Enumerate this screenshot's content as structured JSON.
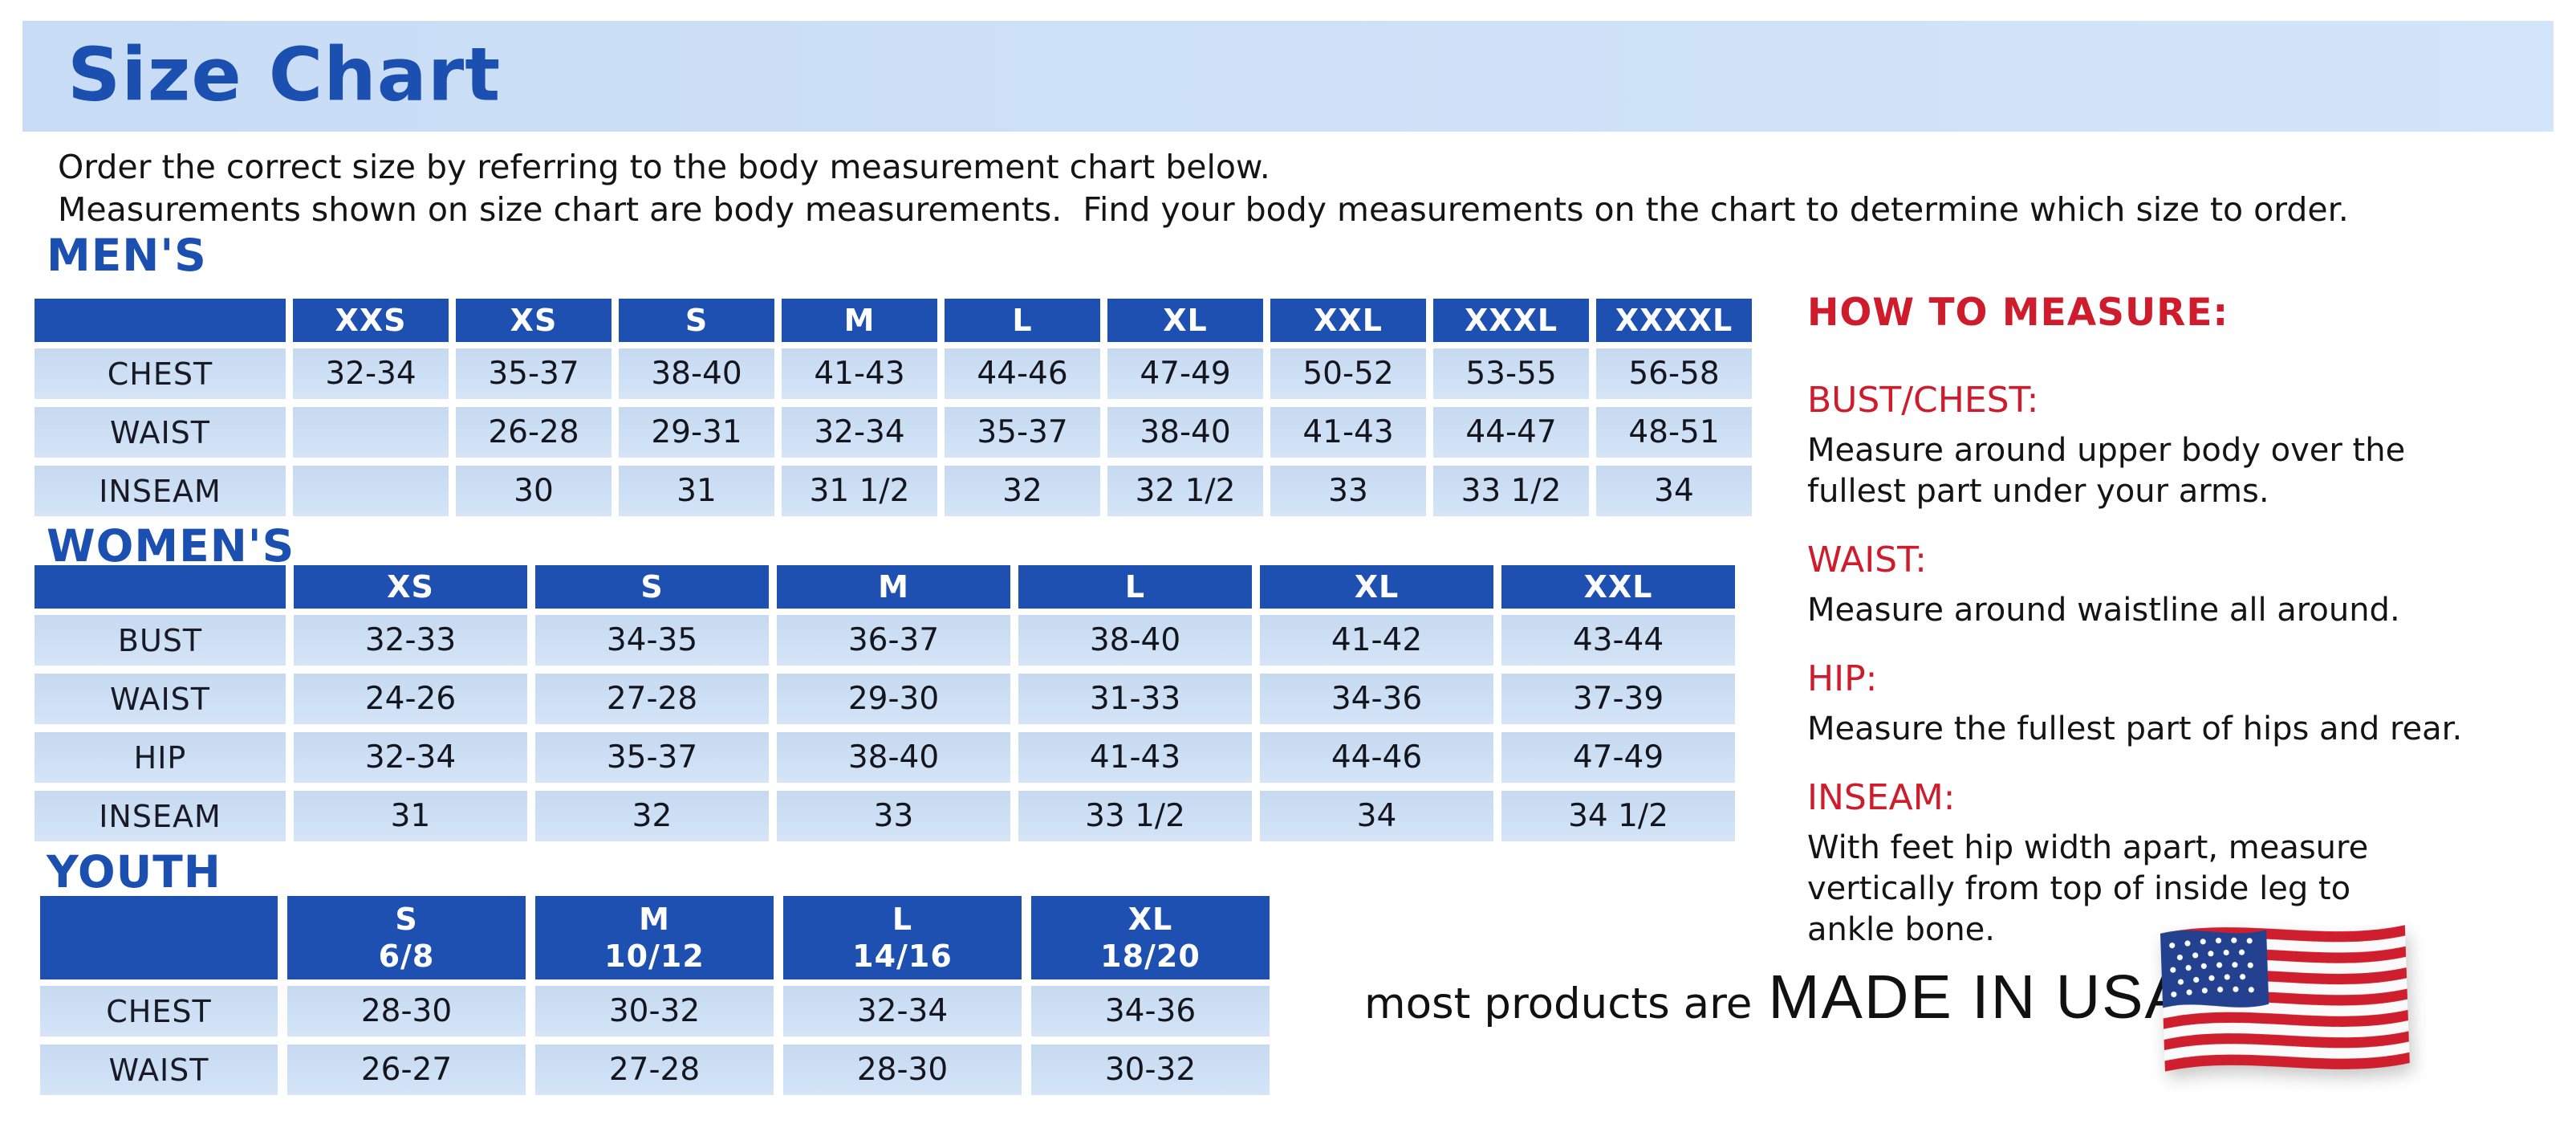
{
  "banner": {
    "title": "Size Chart"
  },
  "intro": {
    "line1": "Order the correct size by referring to the body measurement chart below.",
    "line2": "Measurements shown on size chart are body measurements.  Find your body measurements on the chart to determine which size to order."
  },
  "tables": {
    "mens": {
      "heading": "MEN'S",
      "columns": [
        "XXS",
        "XS",
        "S",
        "M",
        "L",
        "XL",
        "XXL",
        "XXXL",
        "XXXXL"
      ],
      "rows": [
        {
          "label": "CHEST",
          "cells": [
            "32-34",
            "35-37",
            "38-40",
            "41-43",
            "44-46",
            "47-49",
            "50-52",
            "53-55",
            "56-58"
          ]
        },
        {
          "label": "WAIST",
          "cells": [
            "",
            "26-28",
            "29-31",
            "32-34",
            "35-37",
            "38-40",
            "41-43",
            "44-47",
            "48-51"
          ]
        },
        {
          "label": "INSEAM",
          "cells": [
            "",
            "30",
            "31",
            "31 1/2",
            "32",
            "32 1/2",
            "33",
            "33 1/2",
            "34"
          ]
        }
      ]
    },
    "womens": {
      "heading": "WOMEN'S",
      "columns": [
        "XS",
        "S",
        "M",
        "L",
        "XL",
        "XXL"
      ],
      "rows": [
        {
          "label": "BUST",
          "cells": [
            "32-33",
            "34-35",
            "36-37",
            "38-40",
            "41-42",
            "43-44"
          ]
        },
        {
          "label": "WAIST",
          "cells": [
            "24-26",
            "27-28",
            "29-30",
            "31-33",
            "34-36",
            "37-39"
          ]
        },
        {
          "label": "HIP",
          "cells": [
            "32-34",
            "35-37",
            "38-40",
            "41-43",
            "44-46",
            "47-49"
          ]
        },
        {
          "label": "INSEAM",
          "cells": [
            "31",
            "32",
            "33",
            "33 1/2",
            "34",
            "34 1/2"
          ]
        }
      ]
    },
    "youth": {
      "heading": "YOUTH",
      "columns": [
        {
          "size": "S",
          "range": "6/8"
        },
        {
          "size": "M",
          "range": "10/12"
        },
        {
          "size": "L",
          "range": "14/16"
        },
        {
          "size": "XL",
          "range": "18/20"
        }
      ],
      "rows": [
        {
          "label": "CHEST",
          "cells": [
            "28-30",
            "30-32",
            "32-34",
            "34-36"
          ]
        },
        {
          "label": "WAIST",
          "cells": [
            "26-27",
            "27-28",
            "28-30",
            "30-32"
          ]
        }
      ]
    }
  },
  "how_to_measure": {
    "heading": "HOW TO MEASURE:",
    "items": [
      {
        "label": "BUST/CHEST:",
        "text": "Measure around upper body over the\nfullest part under your arms."
      },
      {
        "label": "WAIST:",
        "text": "Measure around waistline all around."
      },
      {
        "label": "HIP:",
        "text": "Measure the fullest part of hips and rear."
      },
      {
        "label": "INSEAM:",
        "text": "With feet hip width apart, measure\nvertically from top of inside leg to\nankle bone."
      }
    ]
  },
  "footer": {
    "prefix": "most products are",
    "made_in": "MADE IN USA",
    "flag_icon": "us-flag-icon"
  },
  "colors": {
    "header_blue": "#1e50b2",
    "cell_blue": "#cde0f5",
    "banner_blue": "#c9def6",
    "heading_blue": "#1b4fb0",
    "accent_red": "#ce1c2c",
    "flag_red": "#cf1f2e",
    "flag_navy": "#23418f"
  }
}
